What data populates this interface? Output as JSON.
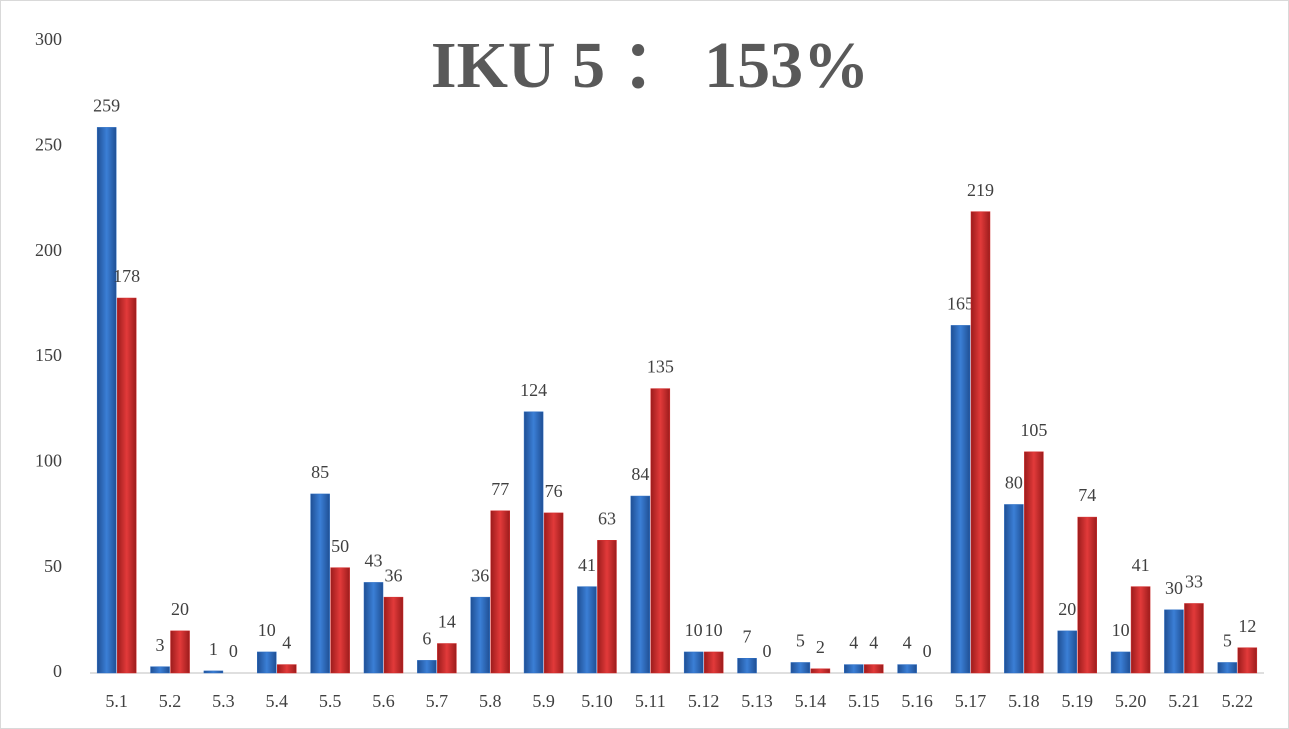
{
  "chart_data": {
    "type": "bar",
    "title": "IKU 5 ： 153%",
    "categories": [
      "5.1",
      "5.2",
      "5.3",
      "5.4",
      "5.5",
      "5.6",
      "5.7",
      "5.8",
      "5.9",
      "5.10",
      "5.11",
      "5.12",
      "5.13",
      "5.14",
      "5.15",
      "5.16",
      "5.17",
      "5.18",
      "5.19",
      "5.20",
      "5.21",
      "5.22"
    ],
    "series": [
      {
        "color": "#2e6fc4",
        "values": [
          259,
          3,
          1,
          10,
          85,
          43,
          6,
          36,
          124,
          41,
          84,
          10,
          7,
          5,
          4,
          4,
          165,
          80,
          20,
          10,
          30,
          5
        ]
      },
      {
        "color": "#d22a2a",
        "values": [
          178,
          20,
          0,
          4,
          50,
          36,
          14,
          77,
          76,
          63,
          135,
          10,
          0,
          2,
          4,
          0,
          219,
          105,
          74,
          41,
          33,
          12
        ]
      }
    ],
    "ylim": [
      0,
      300
    ],
    "yticks": [
      0,
      50,
      100,
      150,
      200,
      250,
      300
    ],
    "grid": false
  }
}
